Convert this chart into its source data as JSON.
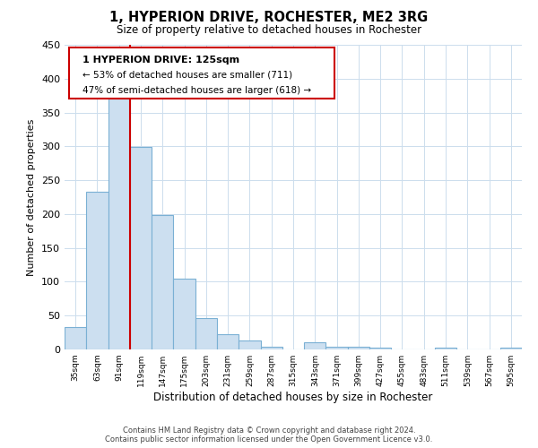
{
  "title": "1, HYPERION DRIVE, ROCHESTER, ME2 3RG",
  "subtitle": "Size of property relative to detached houses in Rochester",
  "xlabel": "Distribution of detached houses by size in Rochester",
  "ylabel": "Number of detached properties",
  "bar_labels": [
    "35sqm",
    "63sqm",
    "91sqm",
    "119sqm",
    "147sqm",
    "175sqm",
    "203sqm",
    "231sqm",
    "259sqm",
    "287sqm",
    "315sqm",
    "343sqm",
    "371sqm",
    "399sqm",
    "427sqm",
    "455sqm",
    "483sqm",
    "511sqm",
    "539sqm",
    "567sqm",
    "595sqm"
  ],
  "bar_values": [
    33,
    233,
    370,
    299,
    199,
    105,
    46,
    22,
    13,
    4,
    0,
    10,
    4,
    4,
    2,
    0,
    0,
    2,
    0,
    0,
    2
  ],
  "bar_color": "#ccdff0",
  "bar_edge_color": "#7ab0d4",
  "ylim": [
    0,
    450
  ],
  "yticks": [
    0,
    50,
    100,
    150,
    200,
    250,
    300,
    350,
    400,
    450
  ],
  "vline_x": 3.0,
  "vline_color": "#cc0000",
  "annotation_title": "1 HYPERION DRIVE: 125sqm",
  "annotation_line1": "← 53% of detached houses are smaller (711)",
  "annotation_line2": "47% of semi-detached houses are larger (618) →",
  "annotation_box_color": "#ffffff",
  "annotation_box_edge": "#cc0000",
  "footer_line1": "Contains HM Land Registry data © Crown copyright and database right 2024.",
  "footer_line2": "Contains public sector information licensed under the Open Government Licence v3.0.",
  "background_color": "#ffffff",
  "grid_color": "#ccdded"
}
